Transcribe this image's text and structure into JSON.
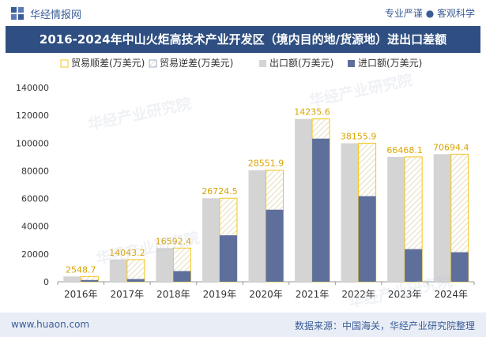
{
  "header": {
    "brand": "华经情报网",
    "tagline": "专业严谨 ● 客观科学",
    "title": "2016-2024年中山火炬高技术产业开发区（境内目的地/货源地）进出口差额"
  },
  "footer": {
    "website": "www.huaon.com",
    "source": "数据来源：中国海关，华经产业研究院整理"
  },
  "watermarks": [
    "华经产业研究院",
    "www.huaon.com"
  ],
  "colors": {
    "export": "#d4d4d4",
    "import": "#5e6f9c",
    "surplus": "#f5c518",
    "deficit": "#9aaecd",
    "axis": "#999999",
    "text": "#333333"
  },
  "chart_data": {
    "type": "bar",
    "categories": [
      "2016年",
      "2017年",
      "2018年",
      "2019年",
      "2020年",
      "2021年",
      "2022年",
      "2023年",
      "2024年"
    ],
    "series": [
      {
        "name": "贸易顺差(万美元)",
        "values": [
          2548.7,
          14043.2,
          16592.4,
          26724.5,
          28551.9,
          14235.6,
          38155.9,
          66468.1,
          70694.4
        ]
      },
      {
        "name": "贸易逆差(万美元)",
        "values": [
          0,
          0,
          0,
          0,
          0,
          0,
          0,
          0,
          0
        ]
      },
      {
        "name": "出口额(万美元)",
        "values": [
          3800,
          16000,
          24300,
          60200,
          80500,
          117400,
          99900,
          90000,
          92000
        ]
      },
      {
        "name": "进口额(万美元)",
        "values": [
          1250,
          1950,
          7700,
          33500,
          51950,
          103200,
          61750,
          23530,
          21300
        ]
      }
    ],
    "data_labels": [
      "2548.7",
      "14043.2",
      "16592.4",
      "26724.5",
      "28551.9",
      "14235.6",
      "38155.9",
      "66468.1",
      "70694.4"
    ],
    "yticks": [
      "0",
      "20000",
      "40000",
      "60000",
      "80000",
      "100000",
      "120000",
      "140000"
    ],
    "ylim": [
      0,
      140000
    ],
    "legend_position": "top",
    "grid": false
  }
}
